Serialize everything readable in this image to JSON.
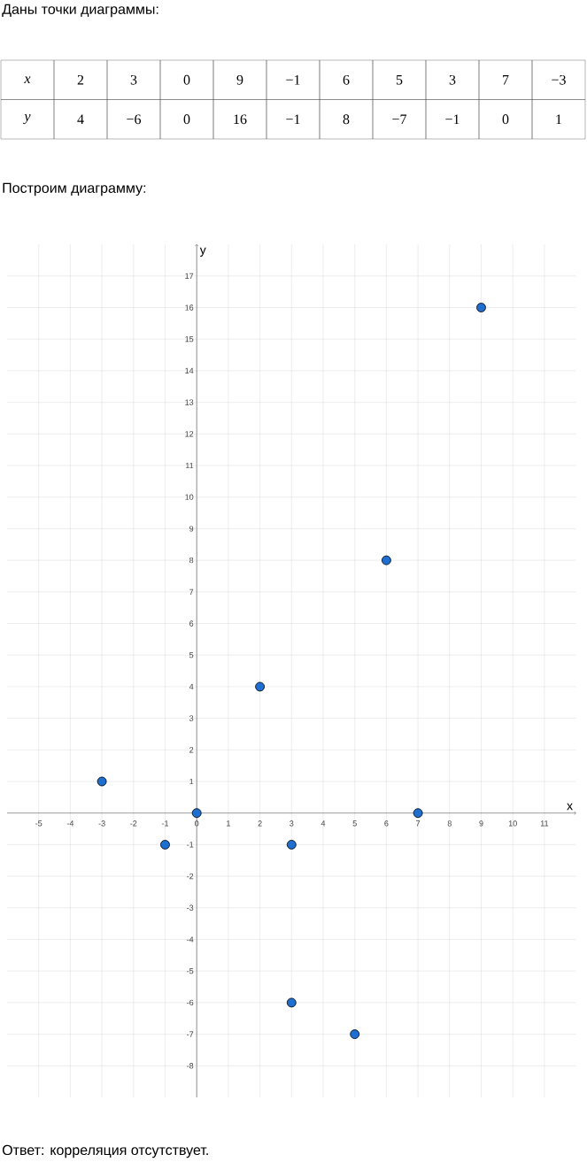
{
  "chart_data": [
    {
      "type": "other",
      "title": "Даны точки диаграммы:",
      "xlabel": "x",
      "ylabel": "y",
      "categories": [
        "2",
        "3",
        "0",
        "9",
        "−1",
        "6",
        "5",
        "3",
        "7",
        "−3"
      ],
      "values": [
        4,
        -6,
        0,
        16,
        -1,
        8,
        -7,
        -1,
        0,
        1
      ],
      "value_labels": [
        "4",
        "−6",
        "0",
        "16",
        "−1",
        "8",
        "−7",
        "−1",
        "0",
        "1"
      ]
    },
    {
      "type": "scatter",
      "title": "Построим диаграмму:",
      "xlabel": "x",
      "ylabel": "y",
      "x": [
        2,
        3,
        0,
        9,
        -1,
        6,
        5,
        3,
        7,
        -3
      ],
      "values": [
        4,
        -6,
        0,
        16,
        -1,
        8,
        -7,
        -1,
        0,
        1
      ],
      "color": "#1f6fd1",
      "marker": "circle",
      "grid": true,
      "xlim": [
        -6,
        12
      ],
      "ylim": [
        -9,
        18
      ],
      "xticks": [
        -5,
        -4,
        -3,
        -2,
        -1,
        0,
        1,
        2,
        3,
        4,
        5,
        6,
        7,
        8,
        9,
        10,
        11
      ],
      "yticks": [
        -8,
        -7,
        -6,
        -5,
        -4,
        -3,
        -2,
        -1,
        1,
        2,
        3,
        4,
        5,
        6,
        7,
        8,
        9,
        10,
        11,
        12,
        13,
        14,
        15,
        16,
        17
      ],
      "annotations": [
        "Ответ:  корреляция отсутствует."
      ]
    }
  ]
}
